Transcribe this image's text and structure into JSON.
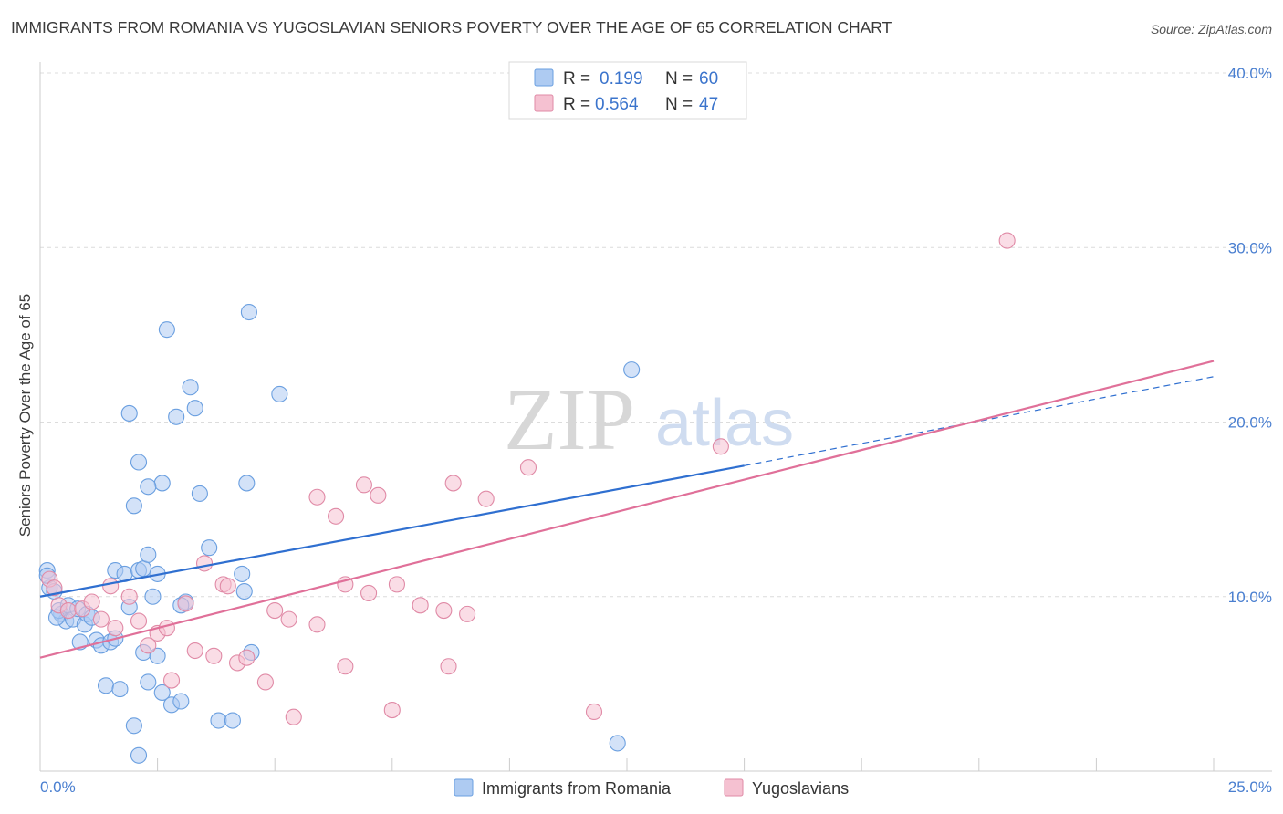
{
  "chart_data": {
    "type": "scatter",
    "title": "IMMIGRANTS FROM ROMANIA VS YUGOSLAVIAN SENIORS POVERTY OVER THE AGE OF 65 CORRELATION CHART",
    "source": "Source: ZipAtlas.com",
    "xlabel": "",
    "ylabel": "Seniors Poverty Over the Age of 65",
    "xlim": [
      0,
      25
    ],
    "ylim": [
      0,
      40
    ],
    "x_tick_labels": [
      "0.0%",
      "25.0%"
    ],
    "y_ticks": [
      10,
      20,
      30,
      40
    ],
    "y_tick_labels": [
      "10.0%",
      "20.0%",
      "30.0%",
      "40.0%"
    ],
    "watermark": {
      "zip": "ZIP",
      "atlas": "atlas"
    },
    "legend": {
      "r_label": "R =",
      "n_label": "N =",
      "entries": [
        {
          "name": "Immigrants from Romania",
          "r": "0.199",
          "n": "60",
          "color": "#6a9fe0",
          "fill": "#aecbf2"
        },
        {
          "name": "Yugoslavians",
          "r": "0.564",
          "n": "47",
          "color": "#e08aa6",
          "fill": "#f5c1d1"
        }
      ]
    },
    "series": [
      {
        "name": "Immigrants from Romania",
        "color": "#6a9fe0",
        "trend": {
          "x0": 0,
          "y0": 10.0,
          "x1": 15,
          "y1": 17.5,
          "dash_x1": 25,
          "dash_y1": 22.6,
          "color": "#2f6fd0"
        },
        "points": [
          [
            0.15,
            11.5
          ],
          [
            0.2,
            10.5
          ],
          [
            0.15,
            11.2
          ],
          [
            0.3,
            10.3
          ],
          [
            0.45,
            9.0
          ],
          [
            0.55,
            8.6
          ],
          [
            0.4,
            9.2
          ],
          [
            0.35,
            8.8
          ],
          [
            0.6,
            9.5
          ],
          [
            0.7,
            8.7
          ],
          [
            0.8,
            9.3
          ],
          [
            0.95,
            8.4
          ],
          [
            1.0,
            9.0
          ],
          [
            1.1,
            8.8
          ],
          [
            1.2,
            7.5
          ],
          [
            1.3,
            7.2
          ],
          [
            1.5,
            7.4
          ],
          [
            1.6,
            11.5
          ],
          [
            1.8,
            11.3
          ],
          [
            1.9,
            9.4
          ],
          [
            1.6,
            7.6
          ],
          [
            0.85,
            7.4
          ],
          [
            2.1,
            11.5
          ],
          [
            2.2,
            11.6
          ],
          [
            2.5,
            11.3
          ],
          [
            2.4,
            10.0
          ],
          [
            2.0,
            15.2
          ],
          [
            2.0,
            2.6
          ],
          [
            1.4,
            4.9
          ],
          [
            1.7,
            4.7
          ],
          [
            2.1,
            0.9
          ],
          [
            2.2,
            6.8
          ],
          [
            2.3,
            5.1
          ],
          [
            2.5,
            6.6
          ],
          [
            2.6,
            4.5
          ],
          [
            2.8,
            3.8
          ],
          [
            3.0,
            4.0
          ],
          [
            3.1,
            9.7
          ],
          [
            2.6,
            16.5
          ],
          [
            2.9,
            20.3
          ],
          [
            2.7,
            25.3
          ],
          [
            2.1,
            17.7
          ],
          [
            2.3,
            16.3
          ],
          [
            1.9,
            20.5
          ],
          [
            3.2,
            22.0
          ],
          [
            3.3,
            20.8
          ],
          [
            3.4,
            15.9
          ],
          [
            3.6,
            12.8
          ],
          [
            3.8,
            2.9
          ],
          [
            4.1,
            2.9
          ],
          [
            4.3,
            11.3
          ],
          [
            4.35,
            10.3
          ],
          [
            4.5,
            6.8
          ],
          [
            4.4,
            16.5
          ],
          [
            4.45,
            26.3
          ],
          [
            5.1,
            21.6
          ],
          [
            12.6,
            23.0
          ],
          [
            12.3,
            1.6
          ],
          [
            3.0,
            9.5
          ],
          [
            2.3,
            12.4
          ]
        ]
      },
      {
        "name": "Yugoslavians",
        "color": "#e08aa6",
        "trend": {
          "x0": 0,
          "y0": 6.5,
          "x1": 25,
          "y1": 23.5,
          "color": "#e07099"
        },
        "points": [
          [
            0.2,
            11.0
          ],
          [
            0.3,
            10.5
          ],
          [
            0.4,
            9.5
          ],
          [
            0.6,
            9.2
          ],
          [
            0.9,
            9.3
          ],
          [
            1.1,
            9.7
          ],
          [
            1.3,
            8.7
          ],
          [
            1.5,
            10.6
          ],
          [
            1.6,
            8.2
          ],
          [
            1.9,
            10.0
          ],
          [
            2.1,
            8.6
          ],
          [
            2.3,
            7.2
          ],
          [
            2.5,
            7.9
          ],
          [
            2.7,
            8.2
          ],
          [
            2.8,
            5.2
          ],
          [
            3.1,
            9.6
          ],
          [
            3.3,
            6.9
          ],
          [
            3.5,
            11.9
          ],
          [
            3.7,
            6.6
          ],
          [
            3.9,
            10.7
          ],
          [
            4.0,
            10.6
          ],
          [
            4.2,
            6.2
          ],
          [
            4.4,
            6.5
          ],
          [
            4.8,
            5.1
          ],
          [
            5.0,
            9.2
          ],
          [
            5.3,
            8.7
          ],
          [
            5.4,
            3.1
          ],
          [
            5.9,
            8.4
          ],
          [
            5.9,
            15.7
          ],
          [
            6.3,
            14.6
          ],
          [
            6.5,
            10.7
          ],
          [
            6.5,
            6.0
          ],
          [
            6.9,
            16.4
          ],
          [
            7.0,
            10.2
          ],
          [
            7.2,
            15.8
          ],
          [
            7.5,
            3.5
          ],
          [
            7.6,
            10.7
          ],
          [
            8.1,
            9.5
          ],
          [
            8.6,
            9.2
          ],
          [
            8.7,
            6.0
          ],
          [
            8.8,
            16.5
          ],
          [
            9.1,
            9.0
          ],
          [
            9.5,
            15.6
          ],
          [
            10.4,
            17.4
          ],
          [
            11.8,
            3.4
          ],
          [
            14.5,
            18.6
          ],
          [
            20.6,
            30.4
          ]
        ]
      }
    ]
  }
}
